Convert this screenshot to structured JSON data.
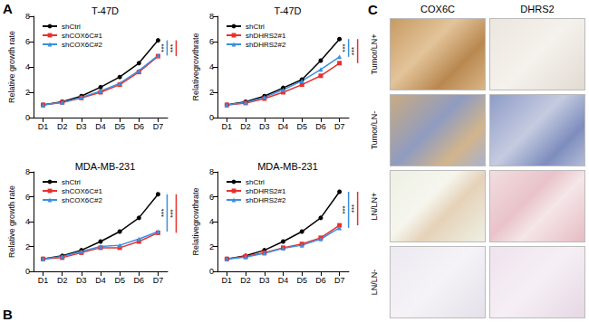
{
  "chart_data": [
    {
      "type": "line",
      "title": "T-47D",
      "ylabel": "Relative growth rate",
      "categories": [
        "D1",
        "D2",
        "D3",
        "D4",
        "D5",
        "D6",
        "D7"
      ],
      "series": [
        {
          "name": "shCtrl",
          "color": "#000000",
          "marker": "circle",
          "values": [
            1,
            1.25,
            1.7,
            2.4,
            3.2,
            4.3,
            6.1
          ]
        },
        {
          "name": "shCOX6C#1",
          "color": "#e8312f",
          "marker": "square",
          "values": [
            1,
            1.2,
            1.55,
            2.0,
            2.6,
            3.6,
            4.85
          ]
        },
        {
          "name": "shCOX6C#2",
          "color": "#3b8fe0",
          "marker": "triangle",
          "values": [
            1,
            1.2,
            1.6,
            2.1,
            2.7,
            3.7,
            4.9
          ]
        }
      ],
      "ylim": [
        0,
        8
      ],
      "yticks": [
        0,
        2,
        4,
        6,
        8
      ],
      "grid": false,
      "legend": "upper left",
      "annotations": [
        {
          "text": "***",
          "color": "#3b8fe0",
          "from": "shCtrl",
          "to": "shCOX6C#2"
        },
        {
          "text": "***",
          "color": "#e8312f",
          "from": "shCtrl",
          "to": "shCOX6C#1"
        }
      ]
    },
    {
      "type": "line",
      "title": "T-47D",
      "ylabel": "Relativegrowthrate",
      "categories": [
        "D1",
        "D2",
        "D3",
        "D4",
        "D5",
        "D6",
        "D7"
      ],
      "series": [
        {
          "name": "shCtrl",
          "color": "#000000",
          "marker": "circle",
          "values": [
            1,
            1.25,
            1.7,
            2.35,
            3.0,
            4.5,
            6.2
          ]
        },
        {
          "name": "shDHRS2#1",
          "color": "#e8312f",
          "marker": "square",
          "values": [
            1,
            1.15,
            1.5,
            2.0,
            2.6,
            3.3,
            4.3
          ]
        },
        {
          "name": "shDHRS2#2",
          "color": "#3b8fe0",
          "marker": "triangle",
          "values": [
            1,
            1.2,
            1.6,
            2.2,
            2.9,
            3.8,
            4.8
          ]
        }
      ],
      "ylim": [
        0,
        8
      ],
      "yticks": [
        0,
        2,
        4,
        6,
        8
      ],
      "grid": false,
      "legend": "upper left",
      "annotations": [
        {
          "text": "***",
          "color": "#3b8fe0",
          "from": "shCtrl",
          "to": "shDHRS2#2"
        },
        {
          "text": "***",
          "color": "#e8312f",
          "from": "shCtrl",
          "to": "shDHRS2#1"
        }
      ]
    },
    {
      "type": "line",
      "title": "MDA-MB-231",
      "ylabel": "Relative growth rate",
      "categories": [
        "D1",
        "D2",
        "D3",
        "D4",
        "D5",
        "D6",
        "D7"
      ],
      "series": [
        {
          "name": "shCtrl",
          "color": "#000000",
          "marker": "circle",
          "values": [
            1,
            1.25,
            1.7,
            2.4,
            3.2,
            4.3,
            6.2
          ]
        },
        {
          "name": "shCOX6C#1",
          "color": "#e8312f",
          "marker": "square",
          "values": [
            1,
            1.1,
            1.5,
            1.9,
            1.9,
            2.4,
            3.1
          ]
        },
        {
          "name": "shCOX6C#2",
          "color": "#3b8fe0",
          "marker": "triangle",
          "values": [
            1,
            1.2,
            1.6,
            2.0,
            2.1,
            2.6,
            3.2
          ]
        }
      ],
      "ylim": [
        0,
        8
      ],
      "yticks": [
        0,
        2,
        4,
        6,
        8
      ],
      "grid": false,
      "legend": "upper left",
      "annotations": [
        {
          "text": "***",
          "color": "#3b8fe0",
          "from": "shCtrl",
          "to": "shCOX6C#2"
        },
        {
          "text": "***",
          "color": "#e8312f",
          "from": "shCtrl",
          "to": "shCOX6C#1"
        }
      ]
    },
    {
      "type": "line",
      "title": "MDA-MB-231",
      "ylabel": "Relativegrowthrate",
      "categories": [
        "D1",
        "D2",
        "D3",
        "D4",
        "D5",
        "D6",
        "D7"
      ],
      "series": [
        {
          "name": "shCtrl",
          "color": "#000000",
          "marker": "circle",
          "values": [
            1,
            1.25,
            1.7,
            2.4,
            3.2,
            4.3,
            6.4
          ]
        },
        {
          "name": "shDHRS2#1",
          "color": "#e8312f",
          "marker": "square",
          "values": [
            1,
            1.2,
            1.5,
            1.9,
            2.2,
            2.7,
            3.7
          ]
        },
        {
          "name": "shDHRS2#2",
          "color": "#3b8fe0",
          "marker": "triangle",
          "values": [
            1,
            1.15,
            1.45,
            1.85,
            2.1,
            2.6,
            3.5
          ]
        }
      ],
      "ylim": [
        0,
        8
      ],
      "yticks": [
        0,
        2,
        4,
        6,
        8
      ],
      "grid": false,
      "legend": "upper left",
      "annotations": [
        {
          "text": "***",
          "color": "#3b8fe0",
          "from": "shCtrl",
          "to": "shDHRS2#2"
        },
        {
          "text": "***",
          "color": "#e8312f",
          "from": "shCtrl",
          "to": "shDHRS2#1"
        }
      ]
    }
  ],
  "panel_labels": [
    "A",
    "B"
  ],
  "panel_c": {
    "label": "C",
    "columns": [
      "COX6C",
      "DHRS2"
    ],
    "rows": [
      "Tumor/LN+",
      "Tumor/LN-",
      "LN/LN+",
      "LN/LN-"
    ]
  }
}
